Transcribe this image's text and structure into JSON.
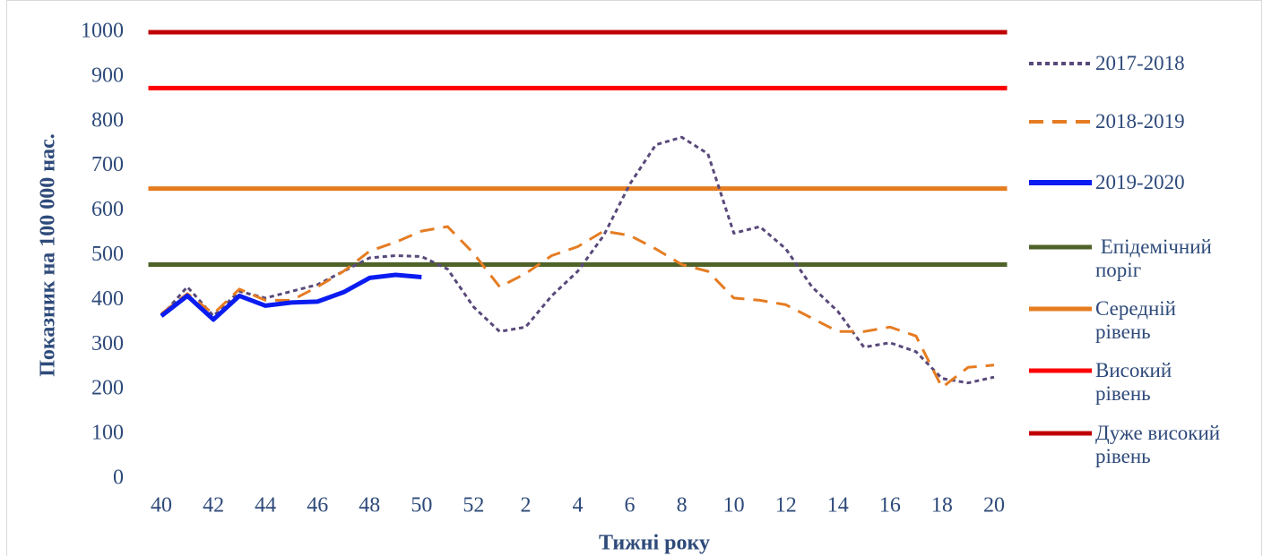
{
  "chart_data": {
    "type": "line",
    "x_label": "Тижні року",
    "y_label": "Показник на 100 000 нас.",
    "categories": [
      "40",
      null,
      "42",
      null,
      "44",
      null,
      "46",
      null,
      "48",
      null,
      "50",
      null,
      "52",
      null,
      "2",
      null,
      "4",
      null,
      "6",
      null,
      "8",
      null,
      "10",
      null,
      "12",
      null,
      "14",
      null,
      "16",
      null,
      "18",
      null,
      "20"
    ],
    "series": [
      {
        "name": "2017-2018",
        "color": "#59497a",
        "dash": "dotted",
        "values": [
          365,
          430,
          365,
          420,
          405,
          420,
          435,
          465,
          495,
          500,
          498,
          470,
          385,
          330,
          340,
          410,
          465,
          545,
          660,
          748,
          765,
          728,
          550,
          565,
          515,
          430,
          375,
          295,
          305,
          285,
          225,
          215,
          228
        ]
      },
      {
        "name": "2018-2019",
        "color": "#e57c22",
        "dash": "dashed",
        "values": [
          370,
          415,
          370,
          425,
          400,
          400,
          430,
          465,
          510,
          530,
          555,
          565,
          505,
          430,
          460,
          500,
          520,
          555,
          545,
          515,
          480,
          465,
          405,
          400,
          390,
          360,
          330,
          330,
          340,
          320,
          205,
          250,
          255
        ]
      },
      {
        "name": "2019-2020",
        "color": "#0a1cf0",
        "dash": "solid",
        "values": [
          365,
          410,
          357,
          410,
          388,
          395,
          397,
          418,
          450,
          457,
          452,
          null,
          null,
          null,
          null,
          null,
          null,
          null,
          null,
          null,
          null,
          null,
          null,
          null,
          null,
          null,
          null,
          null,
          null,
          null,
          null,
          null,
          null
        ]
      }
    ],
    "reference_lines": [
      {
        "name": " Епідемічний поріг",
        "color": "#4f6228",
        "value": 480
      },
      {
        "name": "Середній рівень",
        "color": "#e67c20",
        "value": 650
      },
      {
        "name": "Високий рівень",
        "color": "#fe0000",
        "value": 875
      },
      {
        "name": "Дуже високий рівень",
        "color": "#c00000",
        "value": 1000
      }
    ],
    "ylim": [
      0,
      1000
    ],
    "yticks": [
      0,
      100,
      200,
      300,
      400,
      500,
      600,
      700,
      800,
      900,
      1000
    ],
    "grid": false
  }
}
